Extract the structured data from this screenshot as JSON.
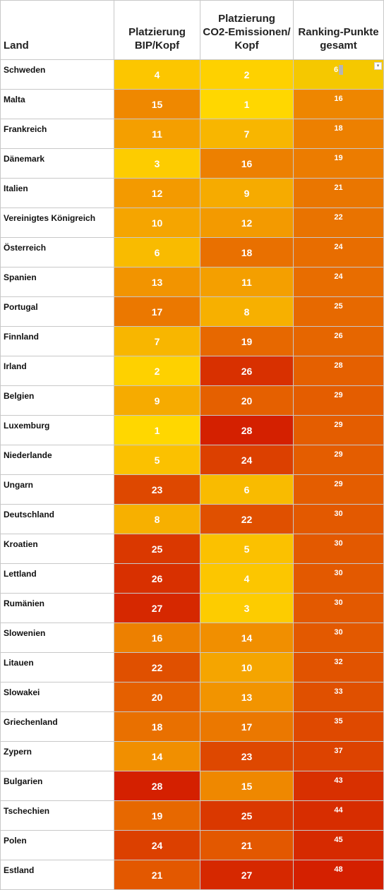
{
  "headers": {
    "land": "Land",
    "bip": [
      "Platzierung",
      "BIP/Kopf"
    ],
    "co2": [
      "Platzierung",
      "CO2-Emissionen/",
      "Kopf"
    ],
    "points": [
      "Ranking-Punkte",
      "gesamt"
    ]
  },
  "color_scale": {
    "best": "#ffd700",
    "worst": "#d42000",
    "text": "#ffffff"
  },
  "rows": [
    {
      "land": "Schweden",
      "bip": "4",
      "co2": "2",
      "points": "6"
    },
    {
      "land": "Malta",
      "bip": "15",
      "co2": "1",
      "points": "16"
    },
    {
      "land": "Frankreich",
      "bip": "11",
      "co2": "7",
      "points": "18"
    },
    {
      "land": "Dänemark",
      "bip": "3",
      "co2": "16",
      "points": "19"
    },
    {
      "land": "Italien",
      "bip": "12",
      "co2": "9",
      "points": "21"
    },
    {
      "land": "Vereinigtes Königreich",
      "bip": "10",
      "co2": "12",
      "points": "22"
    },
    {
      "land": "Österreich",
      "bip": "6",
      "co2": "18",
      "points": "24"
    },
    {
      "land": "Spanien",
      "bip": "13",
      "co2": "11",
      "points": "24"
    },
    {
      "land": "Portugal",
      "bip": "17",
      "co2": "8",
      "points": "25"
    },
    {
      "land": "Finnland",
      "bip": "7",
      "co2": "19",
      "points": "26"
    },
    {
      "land": "Irland",
      "bip": "2",
      "co2": "26",
      "points": "28"
    },
    {
      "land": "Belgien",
      "bip": "9",
      "co2": "20",
      "points": "29"
    },
    {
      "land": "Luxemburg",
      "bip": "1",
      "co2": "28",
      "points": "29"
    },
    {
      "land": "Niederlande",
      "bip": "5",
      "co2": "24",
      "points": "29"
    },
    {
      "land": "Ungarn",
      "bip": "23",
      "co2": "6",
      "points": "29"
    },
    {
      "land": "Deutschland",
      "bip": "8",
      "co2": "22",
      "points": "30"
    },
    {
      "land": "Kroatien",
      "bip": "25",
      "co2": "5",
      "points": "30"
    },
    {
      "land": "Lettland",
      "bip": "26",
      "co2": "4",
      "points": "30"
    },
    {
      "land": "Rumänien",
      "bip": "27",
      "co2": "3",
      "points": "30"
    },
    {
      "land": "Slowenien",
      "bip": "16",
      "co2": "14",
      "points": "30"
    },
    {
      "land": "Litauen",
      "bip": "22",
      "co2": "10",
      "points": "32"
    },
    {
      "land": "Slowakei",
      "bip": "20",
      "co2": "13",
      "points": "33"
    },
    {
      "land": "Griechenland",
      "bip": "18",
      "co2": "17",
      "points": "35"
    },
    {
      "land": "Zypern",
      "bip": "14",
      "co2": "23",
      "points": "37"
    },
    {
      "land": "Bulgarien",
      "bip": "28",
      "co2": "15",
      "points": "43"
    },
    {
      "land": "Tschechien",
      "bip": "19",
      "co2": "25",
      "points": "44"
    },
    {
      "land": "Polen",
      "bip": "24",
      "co2": "21",
      "points": "45"
    },
    {
      "land": "Estland",
      "bip": "21",
      "co2": "27",
      "points": "48"
    }
  ],
  "selected_cell": {
    "row": 0,
    "column": "points",
    "dropdown_icon": "chevron-down-icon"
  }
}
